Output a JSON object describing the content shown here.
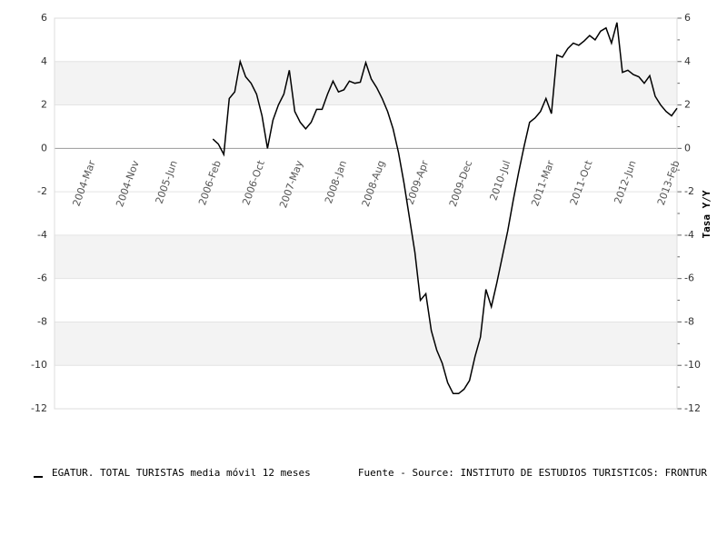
{
  "chart_data": {
    "type": "line",
    "x": [
      "2006-01",
      "2006-02",
      "2006-03",
      "2006-04",
      "2006-05",
      "2006-06",
      "2006-07",
      "2006-08",
      "2006-09",
      "2006-10",
      "2006-11",
      "2006-12",
      "2007-01",
      "2007-02",
      "2007-03",
      "2007-04",
      "2007-05",
      "2007-06",
      "2007-07",
      "2007-08",
      "2007-09",
      "2007-10",
      "2007-11",
      "2007-12",
      "2008-01",
      "2008-02",
      "2008-03",
      "2008-04",
      "2008-05",
      "2008-06",
      "2008-07",
      "2008-08",
      "2008-09",
      "2008-10",
      "2008-11",
      "2008-12",
      "2009-01",
      "2009-02",
      "2009-03",
      "2009-04",
      "2009-05",
      "2009-06",
      "2009-07",
      "2009-08",
      "2009-09",
      "2009-10",
      "2009-11",
      "2009-12",
      "2010-01",
      "2010-02",
      "2010-03",
      "2010-04",
      "2010-05",
      "2010-06",
      "2010-07",
      "2010-08",
      "2010-09",
      "2010-10",
      "2010-11",
      "2010-12",
      "2011-01",
      "2011-02",
      "2011-03",
      "2011-04",
      "2011-05",
      "2011-06",
      "2011-07",
      "2011-08",
      "2011-09",
      "2011-10",
      "2011-11",
      "2011-12",
      "2012-01",
      "2012-02",
      "2012-03",
      "2012-04",
      "2012-05",
      "2012-06",
      "2012-07",
      "2012-08",
      "2012-09",
      "2012-10",
      "2012-11",
      "2012-12",
      "2013-01",
      "2013-02"
    ],
    "series": [
      {
        "name": "EGATUR. TOTAL TURISTAS media móvil 12 meses",
        "color": "#000000",
        "values": [
          0.43,
          0.2,
          -0.28,
          2.3,
          2.6,
          4.0,
          3.3,
          3.0,
          2.5,
          1.5,
          0.0,
          1.3,
          2.0,
          2.5,
          3.6,
          1.7,
          1.2,
          0.9,
          1.2,
          1.8,
          1.8,
          2.5,
          3.1,
          2.6,
          2.7,
          3.1,
          3.0,
          3.05,
          3.95,
          3.2,
          2.8,
          2.3,
          1.7,
          0.9,
          -0.2,
          -1.6,
          -3.2,
          -4.8,
          -7.0,
          -6.7,
          -8.4,
          -9.3,
          -9.9,
          -10.8,
          -11.3,
          -11.3,
          -11.1,
          -10.7,
          -9.6,
          -8.7,
          -6.5,
          -7.3,
          -6.2,
          -5.0,
          -3.8,
          -2.4,
          -1.1,
          0.1,
          1.2,
          1.4,
          1.7,
          2.3,
          1.6,
          4.3,
          4.2,
          4.6,
          4.85,
          4.75,
          4.95,
          5.2,
          5.0,
          5.4,
          5.55,
          4.85,
          5.8,
          3.5,
          3.6,
          3.4,
          3.3,
          3.0,
          3.35,
          2.4,
          2.0,
          1.7,
          1.5,
          1.85
        ]
      }
    ],
    "source": "Fuente - Source: INSTITUTO DE ESTUDIOS TURISTICOS: FRONTUR",
    "y2label": "Tasa Y/Y",
    "xlim": [
      "2003-08",
      "2013-02"
    ],
    "xticks": [
      {
        "value": "2004-03",
        "label": "2004-Mar"
      },
      {
        "value": "2004-11",
        "label": "2004-Nov"
      },
      {
        "value": "2005-06",
        "label": "2005-Jun"
      },
      {
        "value": "2006-02",
        "label": "2006-Feb"
      },
      {
        "value": "2006-10",
        "label": "2006-Oct"
      },
      {
        "value": "2007-05",
        "label": "2007-May"
      },
      {
        "value": "2008-01",
        "label": "2008-Jan"
      },
      {
        "value": "2008-08",
        "label": "2008-Aug"
      },
      {
        "value": "2009-04",
        "label": "2009-Apr"
      },
      {
        "value": "2009-12",
        "label": "2009-Dec"
      },
      {
        "value": "2010-07",
        "label": "2010-Jul"
      },
      {
        "value": "2011-03",
        "label": "2011-Mar"
      },
      {
        "value": "2011-10",
        "label": "2011-Oct"
      },
      {
        "value": "2012-06",
        "label": "2012-Jun"
      },
      {
        "value": "2013-02",
        "label": "2013-Feb"
      }
    ],
    "ylim": [
      -12,
      6
    ],
    "yticks": [
      -12,
      -10,
      -8,
      -6,
      -4,
      -2,
      0,
      2,
      4,
      6
    ],
    "y2lim": [
      -12,
      6
    ],
    "y2ticks": [
      -12,
      -10,
      -8,
      -6,
      -4,
      -2,
      0,
      2,
      4,
      6
    ],
    "y2minorticks": [
      -11,
      -9,
      -7,
      -5,
      -3,
      -1,
      1,
      3,
      5
    ],
    "shaded_bands": [
      [
        2,
        4
      ],
      [
        -6,
        -4
      ],
      [
        -10,
        -8
      ]
    ],
    "grid": true
  }
}
